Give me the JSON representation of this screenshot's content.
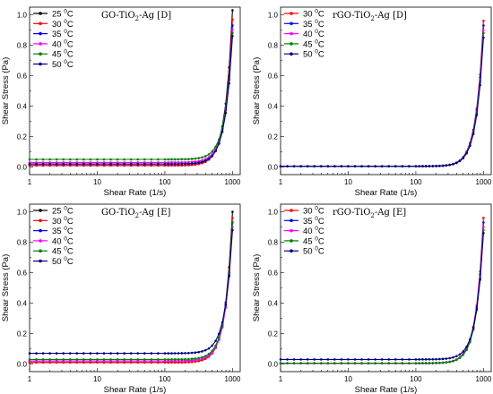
{
  "chart_data": [
    {
      "type": "line",
      "title": "GO-TiO2-Ag [D]",
      "title_base": "GO-TiO",
      "title_sub": "2",
      "title_rest": "-Ag [D]",
      "xlabel": "Shear Rate (1/s)",
      "ylabel": "Shear Stress (Pa)",
      "xscale": "log",
      "xlim": [
        1,
        1300
      ],
      "ylim": [
        -0.05,
        1.05
      ],
      "xticks": [
        1,
        10,
        100,
        1000
      ],
      "yticks": [
        0.0,
        0.2,
        0.4,
        0.6,
        0.8,
        1.0
      ],
      "xtick_labels": [
        "1",
        "10",
        "100",
        "1000"
      ],
      "ytick_labels": [
        "0.0",
        "0.2",
        "0.4",
        "0.6",
        "0.8",
        "1.0"
      ],
      "legend_position": "top-left",
      "series": [
        {
          "name": "25 °C",
          "temp": "25",
          "color": "#000000",
          "base": 0.01,
          "y_end": 1.03
        },
        {
          "name": "30 °C",
          "temp": "30",
          "color": "#ff0000",
          "base": 0.01,
          "y_end": 0.97
        },
        {
          "name": "35 °C",
          "temp": "35",
          "color": "#0000ff",
          "base": 0.02,
          "y_end": 0.93
        },
        {
          "name": "40 °C",
          "temp": "40",
          "color": "#ff00ff",
          "base": 0.03,
          "y_end": 0.9
        },
        {
          "name": "45 °C",
          "temp": "45",
          "color": "#008000",
          "base": 0.05,
          "y_end": 0.88
        },
        {
          "name": "50 °C",
          "temp": "50",
          "color": "#000080",
          "base": 0.02,
          "y_end": 0.86
        }
      ]
    },
    {
      "type": "line",
      "title": "rGO-TiO2-Ag [D]",
      "title_base": "rGO-TiO",
      "title_sub": "2",
      "title_rest": "-Ag [D]",
      "xlabel": "Shear Rate (1/s)",
      "ylabel": "Shear Stress (Pa)",
      "xscale": "log",
      "xlim": [
        1,
        1300
      ],
      "ylim": [
        -0.05,
        1.05
      ],
      "xticks": [
        1,
        10,
        100,
        1000
      ],
      "yticks": [
        0.0,
        0.2,
        0.4,
        0.6,
        0.8,
        1.0
      ],
      "xtick_labels": [
        "1",
        "10",
        "100",
        "1000"
      ],
      "ytick_labels": [
        "0.0",
        "0.2",
        "0.4",
        "0.6",
        "0.8",
        "1.0"
      ],
      "legend_position": "top-left",
      "series": [
        {
          "name": "30 °C",
          "temp": "30",
          "color": "#ff0000",
          "base": 0.005,
          "y_end": 0.96
        },
        {
          "name": "35 °C",
          "temp": "35",
          "color": "#0000ff",
          "base": 0.005,
          "y_end": 0.93
        },
        {
          "name": "40 °C",
          "temp": "40",
          "color": "#ff00ff",
          "base": 0.005,
          "y_end": 0.9
        },
        {
          "name": "45 °C",
          "temp": "45",
          "color": "#008000",
          "base": 0.005,
          "y_end": 0.88
        },
        {
          "name": "50 °C",
          "temp": "50",
          "color": "#000080",
          "base": 0.005,
          "y_end": 0.85
        }
      ]
    },
    {
      "type": "line",
      "title": "GO-TiO2-Ag [E]",
      "title_base": "GO-TiO",
      "title_sub": "2",
      "title_rest": "-Ag [E]",
      "xlabel": "Shear Rate (1/s)",
      "ylabel": "Shear Stress (Pa)",
      "xscale": "log",
      "xlim": [
        1,
        1300
      ],
      "ylim": [
        -0.05,
        1.05
      ],
      "xticks": [
        1,
        10,
        100,
        1000
      ],
      "yticks": [
        0.0,
        0.2,
        0.4,
        0.6,
        0.8,
        1.0
      ],
      "xtick_labels": [
        "1",
        "10",
        "100",
        "1000"
      ],
      "ytick_labels": [
        "0.0",
        "0.2",
        "0.4",
        "0.6",
        "0.8",
        "1.0"
      ],
      "legend_position": "top-left",
      "series": [
        {
          "name": "25 °C",
          "temp": "25",
          "color": "#000000",
          "base": 0.01,
          "y_end": 1.0
        },
        {
          "name": "30 °C",
          "temp": "30",
          "color": "#ff0000",
          "base": 0.01,
          "y_end": 0.96
        },
        {
          "name": "35 °C",
          "temp": "35",
          "color": "#0000ff",
          "base": 0.02,
          "y_end": 0.93
        },
        {
          "name": "40 °C",
          "temp": "40",
          "color": "#ff00ff",
          "base": 0.02,
          "y_end": 0.9
        },
        {
          "name": "45 °C",
          "temp": "45",
          "color": "#008000",
          "base": 0.03,
          "y_end": 0.93
        },
        {
          "name": "50 °C",
          "temp": "50",
          "color": "#000080",
          "base": 0.07,
          "y_end": 0.88
        }
      ]
    },
    {
      "type": "line",
      "title": "rGO-TiO2-Ag [E]",
      "title_base": "rGO-TiO",
      "title_sub": "2",
      "title_rest": "-Ag [E]",
      "xlabel": "Shear Rate (1/s)",
      "ylabel": "Shear Stress (Pa)",
      "xscale": "log",
      "xlim": [
        1,
        1300
      ],
      "ylim": [
        -0.05,
        1.05
      ],
      "xticks": [
        1,
        10,
        100,
        1000
      ],
      "yticks": [
        0.0,
        0.2,
        0.4,
        0.6,
        0.8,
        1.0
      ],
      "xtick_labels": [
        "1",
        "10",
        "100",
        "1000"
      ],
      "ytick_labels": [
        "0.0",
        "0.2",
        "0.4",
        "0.6",
        "0.8",
        "1.0"
      ],
      "legend_position": "top-left",
      "series": [
        {
          "name": "30 °C",
          "temp": "30",
          "color": "#ff0000",
          "base": 0.005,
          "y_end": 0.96
        },
        {
          "name": "35 °C",
          "temp": "35",
          "color": "#0000ff",
          "base": 0.005,
          "y_end": 0.93
        },
        {
          "name": "40 °C",
          "temp": "40",
          "color": "#ff00ff",
          "base": 0.005,
          "y_end": 0.9
        },
        {
          "name": "45 °C",
          "temp": "45",
          "color": "#008000",
          "base": 0.005,
          "y_end": 0.88
        },
        {
          "name": "50 °C",
          "temp": "50",
          "color": "#000080",
          "base": 0.03,
          "y_end": 0.86
        }
      ]
    }
  ]
}
